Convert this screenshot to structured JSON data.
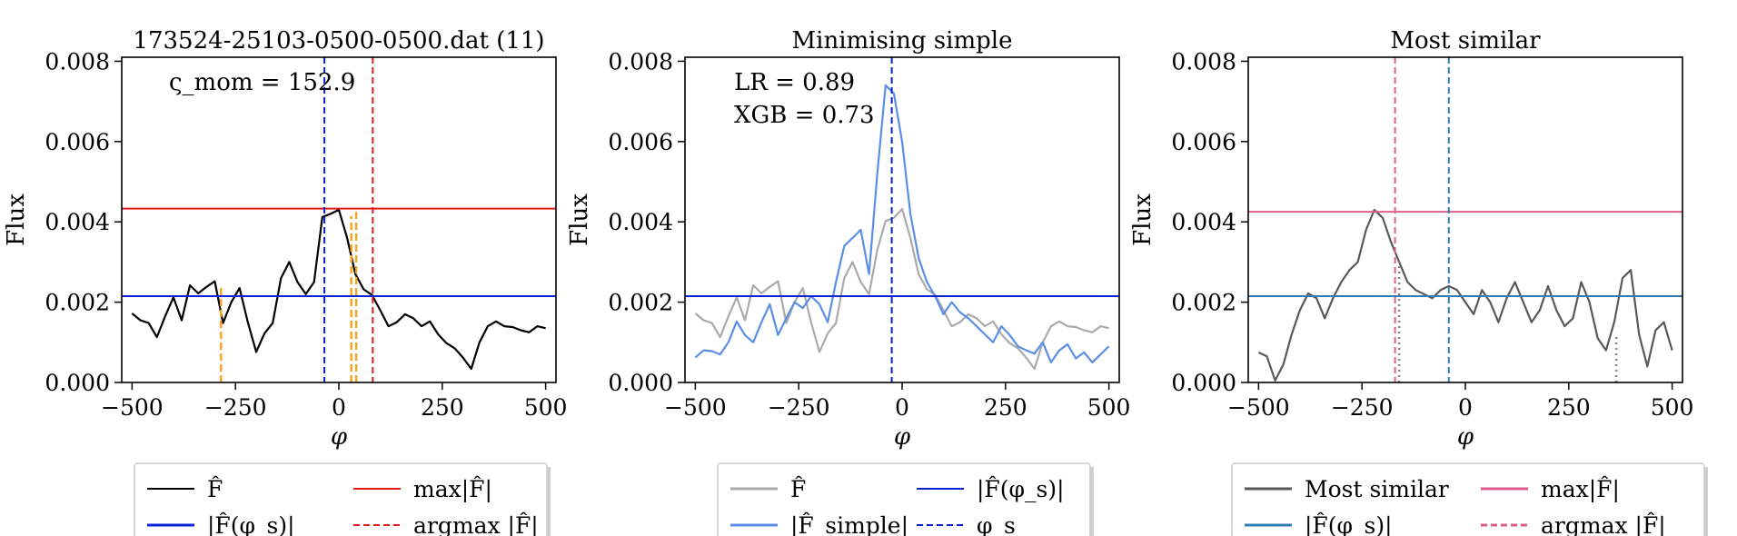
{
  "chart_data": [
    {
      "type": "line",
      "title": "173524-25103-0500-0500.dat (11)",
      "xlabel": "φ",
      "ylabel": "Flux",
      "xlim": [
        -525,
        525
      ],
      "ylim": [
        0,
        0.0081
      ],
      "xticks": [
        -500,
        -250,
        0,
        250,
        500
      ],
      "xtick_labels": [
        "−500",
        "−250",
        "0",
        "250",
        "500"
      ],
      "yticks": [
        0,
        0.002,
        0.004,
        0.006,
        0.008
      ],
      "ytick_labels": [
        "0.000",
        "0.002",
        "0.004",
        "0.006",
        "0.008"
      ],
      "annotations": [
        "ς_mom = 152.9"
      ],
      "series": [
        {
          "name": "F̂",
          "kind": "curve",
          "color": "#000000",
          "x": [
            -500,
            -480,
            -460,
            -440,
            -420,
            -400,
            -380,
            -360,
            -340,
            -320,
            -300,
            -280,
            -260,
            -240,
            -220,
            -200,
            -180,
            -160,
            -140,
            -120,
            -100,
            -80,
            -60,
            -40,
            -20,
            0,
            20,
            40,
            60,
            80,
            100,
            120,
            140,
            160,
            180,
            200,
            220,
            240,
            260,
            280,
            300,
            320,
            340,
            360,
            380,
            400,
            420,
            440,
            460,
            480,
            500
          ],
          "y": [
            0.00172,
            0.00155,
            0.00148,
            0.00113,
            0.00165,
            0.00212,
            0.00155,
            0.00242,
            0.00222,
            0.00238,
            0.00252,
            0.00148,
            0.002,
            0.00235,
            0.0015,
            0.00076,
            0.00122,
            0.00148,
            0.0026,
            0.003,
            0.0025,
            0.0022,
            0.0025,
            0.00412,
            0.0042,
            0.0043,
            0.0036,
            0.0027,
            0.00232,
            0.00218,
            0.0018,
            0.0014,
            0.0015,
            0.0017,
            0.0016,
            0.0014,
            0.00152,
            0.0012,
            0.00098,
            0.00085,
            0.00062,
            0.00034,
            0.001,
            0.0014,
            0.00152,
            0.0014,
            0.00138,
            0.0013,
            0.00125,
            0.0014,
            0.00135
          ]
        },
        {
          "name": "max|F̂|",
          "kind": "hline",
          "color": "#e31a1c",
          "y": 0.00433
        },
        {
          "name": "|F̂(φ_s)|",
          "kind": "hline",
          "color": "#0a21d6",
          "y": 0.00215
        },
        {
          "name": "argmax |F̂|",
          "kind": "vline",
          "color": "#e31a1c",
          "dash": true,
          "x": 82
        },
        {
          "name": "φ_s",
          "kind": "vline",
          "color": "#0a21d6",
          "dash": true,
          "x": -35
        },
        {
          "name": "",
          "kind": "segments",
          "color": "#f5a623",
          "dash": true,
          "x": [
            -285,
            30,
            42
          ],
          "y": [
            0.00245,
            0.00415,
            0.00425
          ]
        }
      ],
      "legend": {
        "placement": "bottom",
        "entries": [
          {
            "label": "F̂",
            "color": "#000000",
            "style": "solid",
            "width": 2
          },
          {
            "label": "max|F̂|",
            "color": "#e31a1c",
            "style": "solid",
            "width": 2
          },
          {
            "label": "|F̂(φ_s)|",
            "color": "#0a21d6",
            "style": "solid",
            "width": 3
          },
          {
            "label": "argmax |F̂|",
            "color": "#e31a1c",
            "style": "dashed",
            "width": 2
          }
        ]
      }
    },
    {
      "type": "line",
      "title": "Minimising simple",
      "xlabel": "φ",
      "ylabel": "Flux",
      "xlim": [
        -525,
        525
      ],
      "ylim": [
        0,
        0.0081
      ],
      "xticks": [
        -500,
        -250,
        0,
        250,
        500
      ],
      "xtick_labels": [
        "−500",
        "−250",
        "0",
        "250",
        "500"
      ],
      "yticks": [
        0,
        0.002,
        0.004,
        0.006,
        0.008
      ],
      "ytick_labels": [
        "0.000",
        "0.002",
        "0.004",
        "0.006",
        "0.008"
      ],
      "annotations": [
        "LR = 0.89",
        "XGB = 0.73"
      ],
      "series": [
        {
          "name": "F̂",
          "kind": "curve",
          "color": "#aaaaaa",
          "x": [
            -500,
            -480,
            -460,
            -440,
            -420,
            -400,
            -380,
            -360,
            -340,
            -320,
            -300,
            -280,
            -260,
            -240,
            -220,
            -200,
            -180,
            -160,
            -140,
            -120,
            -100,
            -80,
            -60,
            -40,
            -20,
            0,
            20,
            40,
            60,
            80,
            100,
            120,
            140,
            160,
            180,
            200,
            220,
            240,
            260,
            280,
            300,
            320,
            340,
            360,
            380,
            400,
            420,
            440,
            460,
            480,
            500
          ],
          "y": [
            0.00172,
            0.00155,
            0.00148,
            0.00113,
            0.00165,
            0.00212,
            0.00155,
            0.00242,
            0.00222,
            0.00238,
            0.00252,
            0.00148,
            0.002,
            0.00235,
            0.0015,
            0.00076,
            0.00122,
            0.00148,
            0.0026,
            0.003,
            0.0025,
            0.0022,
            0.0033,
            0.00402,
            0.0041,
            0.00432,
            0.0036,
            0.0027,
            0.00232,
            0.00218,
            0.0018,
            0.0014,
            0.0015,
            0.0017,
            0.0016,
            0.0014,
            0.00152,
            0.0012,
            0.00098,
            0.00085,
            0.00062,
            0.00034,
            0.001,
            0.0014,
            0.00152,
            0.0014,
            0.00138,
            0.0013,
            0.00125,
            0.0014,
            0.00135
          ]
        },
        {
          "name": "|F̂_simple|",
          "kind": "curve",
          "color": "#5b8ee6",
          "x": [
            -500,
            -480,
            -460,
            -440,
            -420,
            -400,
            -380,
            -360,
            -340,
            -320,
            -300,
            -280,
            -260,
            -240,
            -220,
            -200,
            -180,
            -160,
            -140,
            -120,
            -100,
            -80,
            -60,
            -40,
            -20,
            0,
            20,
            40,
            60,
            80,
            100,
            120,
            140,
            160,
            180,
            200,
            220,
            240,
            260,
            280,
            300,
            320,
            340,
            360,
            380,
            400,
            420,
            440,
            460,
            480,
            500
          ],
          "y": [
            0.00062,
            0.0008,
            0.00078,
            0.0007,
            0.001,
            0.00152,
            0.00118,
            0.001,
            0.0015,
            0.00195,
            0.00118,
            0.0016,
            0.002,
            0.00185,
            0.00215,
            0.00195,
            0.0015,
            0.0025,
            0.0034,
            0.0036,
            0.0038,
            0.0027,
            0.0052,
            0.0074,
            0.0072,
            0.006,
            0.0042,
            0.0031,
            0.0025,
            0.00215,
            0.0017,
            0.002,
            0.00175,
            0.0016,
            0.0014,
            0.0012,
            0.001,
            0.0014,
            0.00118,
            0.0009,
            0.0008,
            0.00072,
            0.001,
            0.0005,
            0.0008,
            0.00095,
            0.0006,
            0.00075,
            0.0005,
            0.0007,
            0.0009
          ]
        },
        {
          "name": "|F̂(φ_s)|",
          "kind": "hline",
          "color": "#0a21d6",
          "y": 0.00215
        },
        {
          "name": "φ_s",
          "kind": "vline",
          "color": "#0a21d6",
          "dash": true,
          "x": -25
        }
      ],
      "legend": {
        "placement": "bottom",
        "entries": [
          {
            "label": "F̂",
            "color": "#aaaaaa",
            "style": "solid",
            "width": 3
          },
          {
            "label": "|F̂(φ_s)|",
            "color": "#0a21d6",
            "style": "solid",
            "width": 2
          },
          {
            "label": "|F̂_simple|",
            "color": "#5b8ee6",
            "style": "solid",
            "width": 3
          },
          {
            "label": "φ_s",
            "color": "#0a21d6",
            "style": "dashed",
            "width": 2
          }
        ]
      }
    },
    {
      "type": "line",
      "title": "Most similar",
      "xlabel": "φ",
      "ylabel": "Flux",
      "xlim": [
        -525,
        525
      ],
      "ylim": [
        0,
        0.0081
      ],
      "xticks": [
        -500,
        -250,
        0,
        250,
        500
      ],
      "xtick_labels": [
        "−500",
        "−250",
        "0",
        "250",
        "500"
      ],
      "yticks": [
        0,
        0.002,
        0.004,
        0.006,
        0.008
      ],
      "ytick_labels": [
        "0.000",
        "0.002",
        "0.004",
        "0.006",
        "0.008"
      ],
      "annotations": [],
      "series": [
        {
          "name": "Most similar",
          "kind": "curve",
          "color": "#595959",
          "x": [
            -500,
            -480,
            -460,
            -440,
            -420,
            -400,
            -380,
            -360,
            -340,
            -320,
            -300,
            -280,
            -260,
            -240,
            -220,
            -200,
            -180,
            -160,
            -140,
            -120,
            -100,
            -80,
            -60,
            -40,
            -20,
            0,
            20,
            40,
            60,
            80,
            100,
            120,
            140,
            160,
            180,
            200,
            220,
            240,
            260,
            280,
            300,
            320,
            340,
            360,
            380,
            400,
            420,
            440,
            460,
            480,
            500
          ],
          "y": [
            0.00075,
            0.00065,
            5e-05,
            0.00045,
            0.0012,
            0.0018,
            0.00222,
            0.0021,
            0.0016,
            0.0021,
            0.0025,
            0.0028,
            0.003,
            0.0038,
            0.0043,
            0.0041,
            0.0035,
            0.003,
            0.0025,
            0.0023,
            0.0022,
            0.0021,
            0.0023,
            0.0024,
            0.0023,
            0.002,
            0.0017,
            0.0023,
            0.002,
            0.0015,
            0.0021,
            0.0025,
            0.002,
            0.0015,
            0.0018,
            0.0024,
            0.0018,
            0.0014,
            0.0016,
            0.0025,
            0.002,
            0.0011,
            0.0008,
            0.0015,
            0.0026,
            0.0028,
            0.0012,
            0.0004,
            0.0013,
            0.0015,
            0.0008
          ]
        },
        {
          "name": "max|F̂|",
          "kind": "hline",
          "color": "#dd5e8d",
          "y": 0.00425
        },
        {
          "name": "|F̂(φ_s)|",
          "kind": "hline",
          "color": "#2f7cb0",
          "y": 0.00215
        },
        {
          "name": "argmax |F̂|",
          "kind": "vline",
          "color": "#dd5e8d",
          "dash": true,
          "x": -170
        },
        {
          "name": "φ_s",
          "kind": "vline",
          "color": "#2f7cb0",
          "dash": true,
          "x": -40
        },
        {
          "name": "",
          "kind": "segments",
          "color": "#888888",
          "dot": true,
          "x": [
            -160,
            365
          ],
          "y": [
            0.003,
            0.00115
          ]
        }
      ],
      "legend": {
        "placement": "bottom",
        "entries": [
          {
            "label": "Most similar",
            "color": "#595959",
            "style": "solid",
            "width": 3
          },
          {
            "label": "max|F̂|",
            "color": "#dd5e8d",
            "style": "solid",
            "width": 3
          },
          {
            "label": "|F̂(φ_s)|",
            "color": "#2f7cb0",
            "style": "solid",
            "width": 3
          },
          {
            "label": "argmax |F̂|",
            "color": "#dd5e8d",
            "style": "dashed",
            "width": 3
          }
        ]
      }
    }
  ]
}
